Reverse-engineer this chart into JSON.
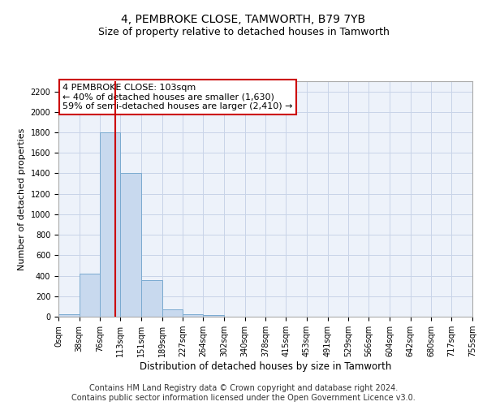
{
  "title": "4, PEMBROKE CLOSE, TAMWORTH, B79 7YB",
  "subtitle": "Size of property relative to detached houses in Tamworth",
  "xlabel": "Distribution of detached houses by size in Tamworth",
  "ylabel": "Number of detached properties",
  "bar_color": "#c8d9ee",
  "bar_edge_color": "#7aaad0",
  "grid_color": "#c8d4e8",
  "background_color": "#edf2fa",
  "property_line_x": 103,
  "property_line_color": "#cc0000",
  "annotation_text": "4 PEMBROKE CLOSE: 103sqm\n← 40% of detached houses are smaller (1,630)\n59% of semi-detached houses are larger (2,410) →",
  "annotation_box_color": "#ffffff",
  "annotation_box_edge": "#cc0000",
  "bin_edges": [
    0,
    38,
    76,
    113,
    151,
    189,
    227,
    264,
    302,
    340,
    378,
    415,
    453,
    491,
    529,
    566,
    604,
    642,
    680,
    717,
    755
  ],
  "bar_values": [
    20,
    420,
    1800,
    1400,
    355,
    75,
    25,
    15,
    0,
    0,
    0,
    0,
    0,
    0,
    0,
    0,
    0,
    0,
    0,
    0
  ],
  "ylim": [
    0,
    2300
  ],
  "yticks": [
    0,
    200,
    400,
    600,
    800,
    1000,
    1200,
    1400,
    1600,
    1800,
    2000,
    2200
  ],
  "footer_text": "Contains HM Land Registry data © Crown copyright and database right 2024.\nContains public sector information licensed under the Open Government Licence v3.0.",
  "footer_fontsize": 7.0,
  "title_fontsize": 10,
  "subtitle_fontsize": 9,
  "xlabel_fontsize": 8.5,
  "ylabel_fontsize": 8,
  "tick_fontsize": 7,
  "annotation_fontsize": 8
}
